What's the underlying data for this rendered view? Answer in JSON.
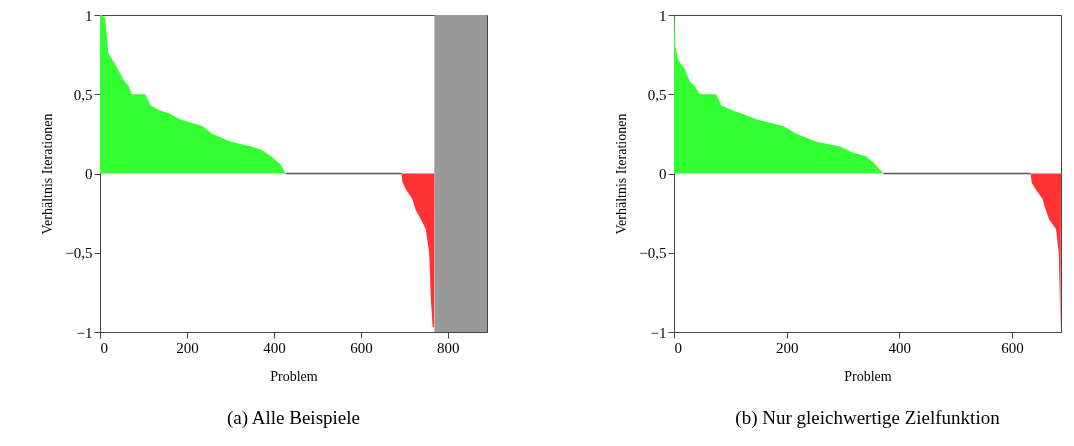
{
  "chart_data": [
    {
      "type": "area",
      "title": "(a) Alle Beispiele",
      "xlabel": "Problem",
      "ylabel": "Verhältnis Iterationen",
      "xlim": [
        0,
        890
      ],
      "ylim": [
        -1,
        1
      ],
      "xticks": [
        {
          "value": 0,
          "label": "0"
        },
        200,
        400,
        600,
        800
      ],
      "yticks": [
        {
          "value": -1,
          "label": "−1"
        },
        {
          "value": -0.5,
          "label": "−0,5"
        },
        {
          "value": 0,
          "label": "0"
        },
        {
          "value": 0.5,
          "label": "0,5"
        },
        1
      ],
      "grid": false,
      "series": [
        {
          "color": "#33ff33",
          "x": [
            0,
            4,
            12,
            19,
            39,
            54,
            66,
            73,
            104,
            116,
            135,
            158,
            185,
            235,
            259,
            301,
            348,
            371,
            382,
            402,
            417,
            427
          ],
          "values": [
            1,
            1,
            0.98,
            0.76,
            0.67,
            0.59,
            0.55,
            0.5,
            0.5,
            0.43,
            0.4,
            0.38,
            0.34,
            0.3,
            0.25,
            0.2,
            0.17,
            0.15,
            0.13,
            0.09,
            0.05,
            0
          ]
        },
        {
          "type": "line",
          "color": "#555555",
          "x": [
            427,
            694
          ],
          "values": [
            0,
            0
          ]
        },
        {
          "color": "#ff3333",
          "x": [
            694,
            695,
            703,
            718,
            726,
            738,
            749,
            757,
            761,
            765,
            768,
            769
          ],
          "values": [
            0,
            -0.05,
            -0.1,
            -0.16,
            -0.23,
            -0.29,
            -0.35,
            -0.5,
            -0.8,
            -0.97,
            -0.97,
            0
          ]
        }
      ],
      "bands": [
        {
          "axis": "x",
          "from": 769,
          "to": 890,
          "color": "#999999"
        }
      ]
    },
    {
      "type": "area",
      "title": "(b) Nur gleichwertige Zielfunktion",
      "xlabel": "Problem",
      "ylabel": "Verhältnis Iterationen",
      "xlim": [
        0,
        687
      ],
      "ylim": [
        -1,
        1
      ],
      "xticks": [
        {
          "value": 0,
          "label": "0"
        },
        200,
        400,
        600
      ],
      "yticks": [
        {
          "value": -1,
          "label": "−1"
        },
        {
          "value": -0.5,
          "label": "−0,5"
        },
        {
          "value": 0,
          "label": "0"
        },
        {
          "value": 0.5,
          "label": "0,5"
        },
        1
      ],
      "grid": false,
      "series": [
        {
          "color": "#33ff33",
          "x": [
            0,
            1,
            2,
            7,
            19,
            28,
            37,
            46,
            75,
            84,
            102,
            126,
            147,
            194,
            218,
            253,
            295,
            319,
            340,
            354,
            372
          ],
          "values": [
            1,
            0.97,
            0.81,
            0.72,
            0.66,
            0.58,
            0.55,
            0.5,
            0.5,
            0.43,
            0.4,
            0.37,
            0.34,
            0.3,
            0.25,
            0.2,
            0.17,
            0.13,
            0.11,
            0.07,
            0
          ]
        },
        {
          "type": "line",
          "color": "#555555",
          "x": [
            372,
            633
          ],
          "values": [
            0,
            0
          ]
        },
        {
          "color": "#ff3333",
          "x": [
            633,
            635,
            642,
            654,
            660,
            666,
            678,
            683,
            685,
            686,
            687
          ],
          "values": [
            0,
            -0.06,
            -0.1,
            -0.16,
            -0.23,
            -0.29,
            -0.35,
            -0.5,
            -0.8,
            -1,
            0
          ]
        }
      ]
    }
  ]
}
